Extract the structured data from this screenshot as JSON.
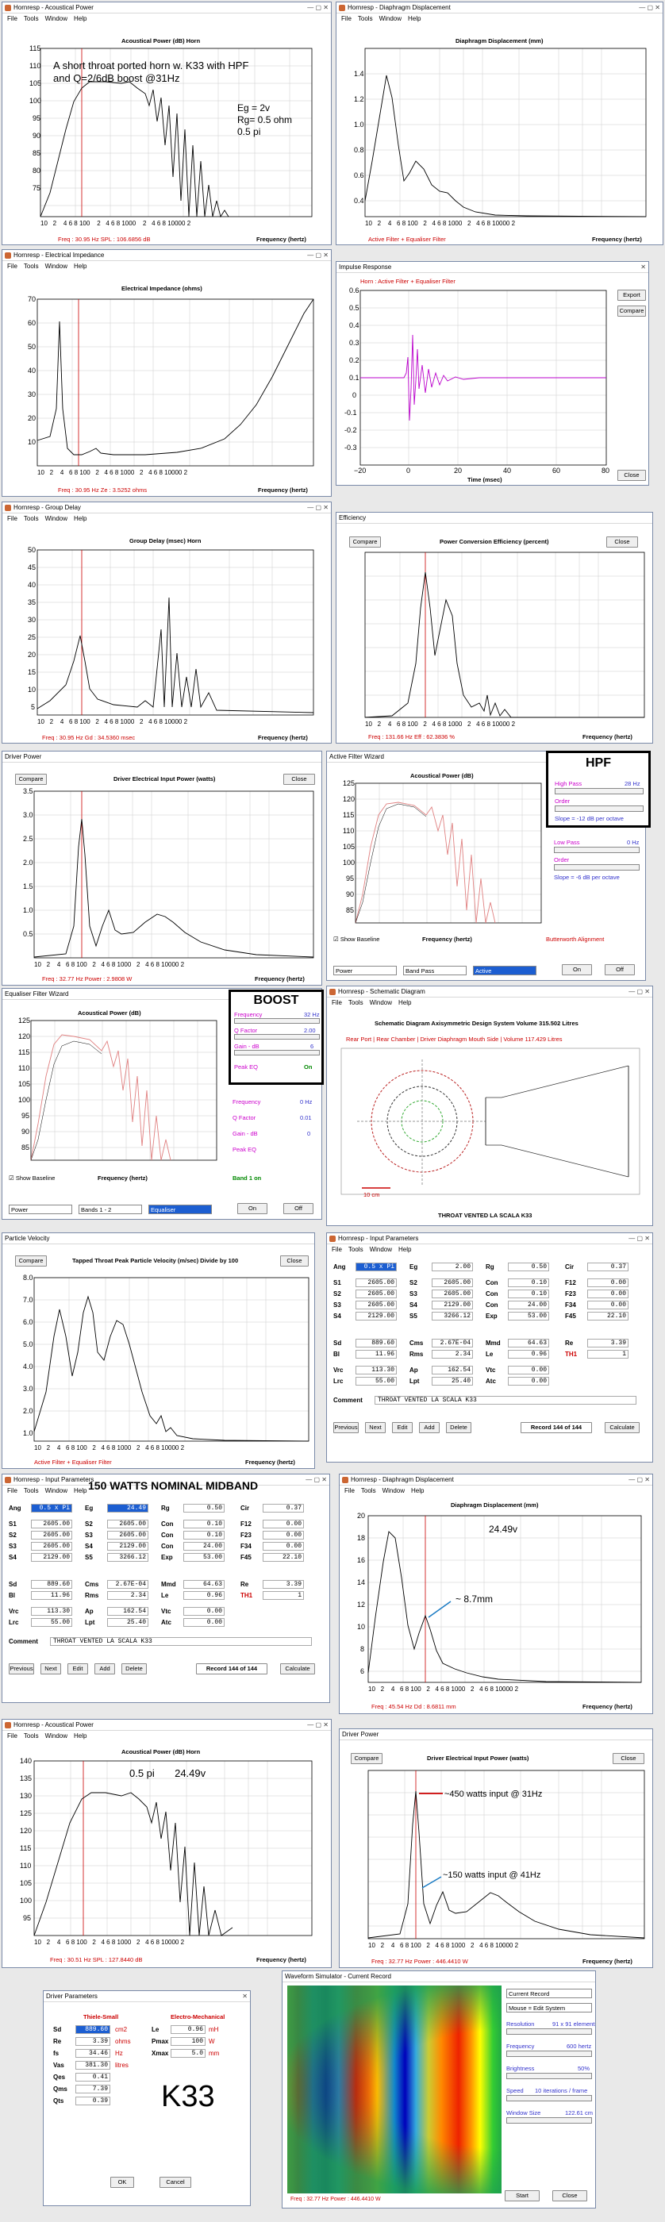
{
  "windows": {
    "w1": {
      "title": "Hornresp - Acoustical Power",
      "chart_title": "Acoustical Power (dB)  Horn",
      "status": "Freq : 30.95 Hz    SPL : 106.6856 dB",
      "note": "A short throat ported horn w. K33 with HPF\nand Q=2/6dB boost @31Hz",
      "params": "Eg = 2v\nRg= 0.5 ohm\n0.5 pi"
    },
    "w2": {
      "title": "Hornresp - Diaphragm Displacement",
      "chart_title": "Diaphragm Displacement (mm)",
      "status": "Active Filter + Equaliser Filter"
    },
    "w3": {
      "title": "Hornresp - Electrical Impedance",
      "chart_title": "Electrical Impedance (ohms)",
      "status": "Freq : 30.95 Hz    Ze : 3.5252 ohms"
    },
    "w4": {
      "title": "Impulse Response",
      "legend": "Horn : Active Filter + Equaliser Filter",
      "xlabel": "Time (msec)",
      "b_export": "Export",
      "b_compare": "Compare",
      "b_close": "Close"
    },
    "w5": {
      "title": "Hornresp - Group Delay",
      "chart_title": "Group Delay (msec)  Horn",
      "status": "Freq : 30.95 Hz    Gd : 34.5360 msec"
    },
    "w6": {
      "title": "Efficiency",
      "chart_title": "Power Conversion Efficiency (percent)",
      "status": "Freq : 131.66 Hz    Eff : 62.3836 %",
      "b_compare": "Compare",
      "b_close": "Close"
    },
    "w7": {
      "title": "Driver Power",
      "chart_title": "Driver Electrical Input Power (watts)",
      "status": "Freq : 32.77 Hz    Power : 2.9808 W",
      "b_compare": "Compare",
      "b_close": "Close"
    },
    "w8": {
      "title": "Active Filter Wizard",
      "chart_title": "Acoustical Power (dB)",
      "show_baseline": "Show Baseline",
      "alignment": "Butterworth Alignment",
      "highpass": "High Pass",
      "hp_val": "28 Hz",
      "order": "Order",
      "slope": "Slope = -12 dB per octave",
      "lowpass": "Low Pass",
      "lp_val": "0 Hz",
      "slope2": "Slope = -6 dB per octave",
      "sel1": "Power",
      "sel2": "Band Pass",
      "sel3": "Active",
      "b_on": "On",
      "b_off": "Off",
      "annot": "HPF"
    },
    "w9": {
      "title": "Equaliser Filter Wizard",
      "chart_title": "Acoustical Power (dB)",
      "show_baseline": "Show Baseline",
      "frequency": "Frequency",
      "f1": "32 Hz",
      "qfactor": "Q Factor",
      "q1": "2.00",
      "gain": "Gain - dB",
      "g1": "6",
      "peak": "Peak EQ",
      "on": "On",
      "f2": "0 Hz",
      "q2": "0.01",
      "g2": "0",
      "band": "Band 1 on",
      "sel1": "Power",
      "sel2": "Bands 1 - 2",
      "sel3": "Equaliser",
      "b_on": "On",
      "b_off": "Off",
      "annot": "BOOST"
    },
    "w10": {
      "title": "Hornresp - Schematic Diagram",
      "header": "Schematic Diagram   Axisymmetric Design   System Volume 315.502 Litres",
      "subheader": "Rear Port | Rear Chamber | Driver Diaphragm Mouth Side | Volume 117.429 Litres",
      "scale": "10 cm",
      "name": "THROAT VENTED LA SCALA K33"
    },
    "w11": {
      "title": "Particle Velocity",
      "chart_title": "Tapped Throat Peak Particle Velocity (m/sec)  Divide by 100",
      "status": "Active Filter + Equaliser Filter",
      "b_compare": "Compare",
      "b_close": "Close"
    },
    "w12": {
      "title": "Hornresp - Input Parameters",
      "annot": "150 WATTS NOMINAL MIDBAND"
    },
    "w14": {
      "title": "Hornresp - Diaphragm Displacement",
      "chart_title": "Diaphragm Displacement (mm)",
      "status": "Freq : 45.54 Hz    Dd : 8.6811 mm",
      "ann1": "24.49v",
      "ann2": "~ 8.7mm"
    },
    "w15": {
      "title": "Hornresp - Acoustical Power",
      "chart_title": "Acoustical Power (dB)  Horn",
      "status": "Freq : 30.51 Hz    SPL : 127.8440 dB",
      "ann": "0.5 pi       24.49v"
    },
    "w16": {
      "title": "Driver Power",
      "chart_title": "Driver Electrical Input Power (watts)",
      "status": "Freq : 32.77 Hz    Power : 446.4410 W",
      "b_compare": "Compare",
      "b_close": "Close",
      "ann1": "~450 watts input @ 31Hz",
      "ann2": "~150 watts input @ 41Hz"
    },
    "w17": {
      "title": "Driver Parameters",
      "h1": "Thiele-Small",
      "h2": "Electro-Mechanical",
      "rows": [
        [
          "Sd",
          "889.60",
          "cm2",
          "Le",
          "0.96",
          "mH"
        ],
        [
          "Re",
          "3.39",
          "ohms",
          "Pmax",
          "100",
          "W"
        ],
        [
          "fs",
          "34.46",
          "Hz",
          "Xmax",
          "5.0",
          "mm"
        ],
        [
          "Vas",
          "381.30",
          "litres",
          "",
          "",
          ""
        ],
        [
          "Qes",
          "0.41",
          "",
          "",
          "",
          ""
        ],
        [
          "Qms",
          "7.39",
          "",
          "",
          "",
          ""
        ],
        [
          "Qts",
          "0.39",
          "",
          "",
          "",
          ""
        ]
      ],
      "annot": "K33",
      "b_ok": "OK",
      "b_cancel": "Cancel"
    },
    "w18": {
      "title": "Waveform Simulator - Current Record",
      "sel1": "Current Record",
      "sel2": "Mouse = Edit System",
      "resolution": "Resolution",
      "res_val": "91 x 91 elements",
      "frequency": "Frequency",
      "freq_val": "600 hertz",
      "brightness": "Brightness",
      "bright_val": "50%",
      "speed": "Speed",
      "speed_val": "10 iterations / frame",
      "window": "Window Size",
      "win_val": "122.61 cm",
      "status": "Freq : 32.77 Hz    Power : 446.4410 W",
      "b_start": "Start",
      "b_close": "Close"
    }
  },
  "input_params": {
    "rows": [
      [
        [
          "Ang",
          "0.5 x Pi"
        ],
        [
          "Eg",
          "24.49"
        ],
        [
          "Rg",
          "0.50"
        ],
        [
          "Cir",
          "0.37"
        ]
      ],
      [
        [
          "S1",
          "2605.00"
        ],
        [
          "S2",
          "2605.00"
        ],
        [
          "Con",
          "0.10"
        ],
        [
          "F12",
          "0.00"
        ]
      ],
      [
        [
          "S2",
          "2605.00"
        ],
        [
          "S3",
          "2605.00"
        ],
        [
          "Con",
          "0.10"
        ],
        [
          "F23",
          "0.00"
        ]
      ],
      [
        [
          "S3",
          "2605.00"
        ],
        [
          "S4",
          "2129.00"
        ],
        [
          "Con",
          "24.00"
        ],
        [
          "F34",
          "0.00"
        ]
      ],
      [
        [
          "S4",
          "2129.00"
        ],
        [
          "S5",
          "3266.12"
        ],
        [
          "Exp",
          "53.00"
        ],
        [
          "F45",
          "22.10"
        ]
      ],
      [
        [
          "Sd",
          "889.60"
        ],
        [
          "Cms",
          "2.67E-04"
        ],
        [
          "Mmd",
          "64.63"
        ],
        [
          "Re",
          "3.39"
        ]
      ],
      [
        [
          "Bl",
          "11.96"
        ],
        [
          "Rms",
          "2.34"
        ],
        [
          "Le",
          "0.96"
        ],
        [
          "TH1",
          "1"
        ]
      ],
      [
        [
          "Vrc",
          "113.30"
        ],
        [
          "Ap",
          "162.54"
        ],
        [
          "Vtc",
          "0.00"
        ]
      ],
      [
        [
          "Lrc",
          "55.00"
        ],
        [
          "Lpt",
          "25.40"
        ],
        [
          "Atc",
          "0.00"
        ]
      ]
    ],
    "eg_first": "2.00",
    "comment_label": "Comment",
    "comment": "THROAT VENTED LA SCALA K33",
    "previous": "Previous",
    "next": "Next",
    "edit": "Edit",
    "add": "Add",
    "delete": "Delete",
    "record": "Record 144 of 144",
    "calculate": "Calculate"
  },
  "menus": [
    "File",
    "Tools",
    "Window",
    "Help"
  ],
  "freq_ticks": [
    "10",
    "2",
    "4",
    "6 8 100",
    "2",
    "4",
    "6 8 1000",
    "2",
    "4",
    "6 8 10000",
    "2"
  ],
  "freq_label": "Frequency (hertz)"
}
